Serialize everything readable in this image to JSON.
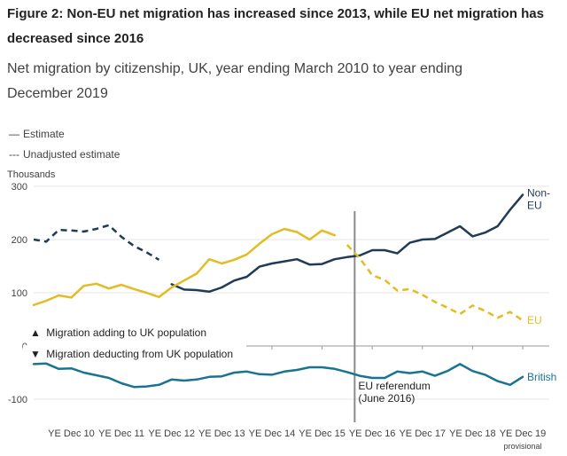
{
  "chart_data": {
    "type": "line",
    "title": "Figure 2: Non-EU net migration has increased since 2013, while EU net migration has decreased since 2016",
    "subtitle": "Net migration by citizenship, UK, year ending March 2010 to year ending December 2019",
    "ylabel": "Thousands",
    "ylim": [
      -120,
      300
    ],
    "yticks": [
      -100,
      0,
      100,
      200,
      300
    ],
    "x_points": 40,
    "x_first": "YE Mar 10",
    "x_last": "YE Dec 19",
    "xticks": [
      {
        "label": "YE Dec 10",
        "index": 3
      },
      {
        "label": "YE Dec 11",
        "index": 7
      },
      {
        "label": "YE Dec 12",
        "index": 11
      },
      {
        "label": "YE Dec 13",
        "index": 15
      },
      {
        "label": "YE Dec 14",
        "index": 19
      },
      {
        "label": "YE Dec 15",
        "index": 23
      },
      {
        "label": "YE Dec 16",
        "index": 27
      },
      {
        "label": "YE Dec 17",
        "index": 31
      },
      {
        "label": "YE Dec 18",
        "index": 35
      },
      {
        "label": "YE Dec 19",
        "index": 39
      }
    ],
    "xtick_note": {
      "index": 39,
      "text": "provisional"
    },
    "legend": {
      "estimate": "Estimate",
      "unadjusted": "Unadjusted estimate",
      "estimate_symbol": "—",
      "unadjusted_symbol": "---"
    },
    "annotations": {
      "adding": "Migration adding to UK population",
      "adding_icon": "triangle-up-icon",
      "adding_symbol": "▲",
      "deducting": "Migration deducting from UK population",
      "deducting_icon": "triangle-down-icon",
      "deducting_symbol": "▼",
      "referendum_line1": "EU referendum",
      "referendum_line2": "(June 2016)",
      "referendum_index": 25.6
    },
    "series": [
      {
        "name": "Non-EU",
        "label_lines": [
          "Non-",
          "EU"
        ],
        "color": "#1f3b57",
        "segments": [
          {
            "style": "dashed",
            "start": 0,
            "values": [
              200,
              196,
              218,
              217,
              215,
              220,
              227,
              205,
              188,
              176,
              162
            ]
          },
          {
            "style": "solid",
            "start": 11,
            "values": [
              116,
              106,
              105,
              102,
              110,
              123,
              130,
              149,
              155,
              159,
              163,
              153,
              154,
              163,
              167,
              170,
              180,
              180,
              174,
              194,
              200,
              201,
              213,
              225,
              206,
              213,
              225,
              256,
              284
            ]
          }
        ]
      },
      {
        "name": "EU",
        "label_lines": [
          "EU"
        ],
        "color": "#e2bc22",
        "segments": [
          {
            "style": "solid",
            "start": 0,
            "values": [
              77,
              85,
              95,
              91,
              113,
              117,
              108,
              115,
              107,
              100,
              92,
              110,
              123,
              136,
              163,
              155,
              162,
              172,
              192,
              210,
              220,
              214,
              200,
              217,
              208
            ]
          },
          {
            "style": "dashed",
            "start": 25,
            "values": [
              190,
              165,
              133,
              124,
              104,
              107,
              96,
              83,
              72,
              60,
              76,
              66,
              53,
              64,
              48
            ]
          }
        ]
      },
      {
        "name": "British",
        "label_lines": [
          "British"
        ],
        "color": "#1a7391",
        "segments": [
          {
            "style": "solid",
            "start": 0,
            "values": [
              -34,
              -33,
              -43,
              -42,
              -50,
              -55,
              -60,
              -70,
              -77,
              -76,
              -73,
              -63,
              -65,
              -63,
              -58,
              -57,
              -50,
              -48,
              -53,
              -54,
              -48,
              -45,
              -40,
              -40,
              -43,
              -49,
              -56,
              -60,
              -60,
              -48,
              -51,
              -48,
              -56,
              -47,
              -34,
              -47,
              -54,
              -66,
              -73,
              -58
            ]
          }
        ]
      }
    ]
  }
}
